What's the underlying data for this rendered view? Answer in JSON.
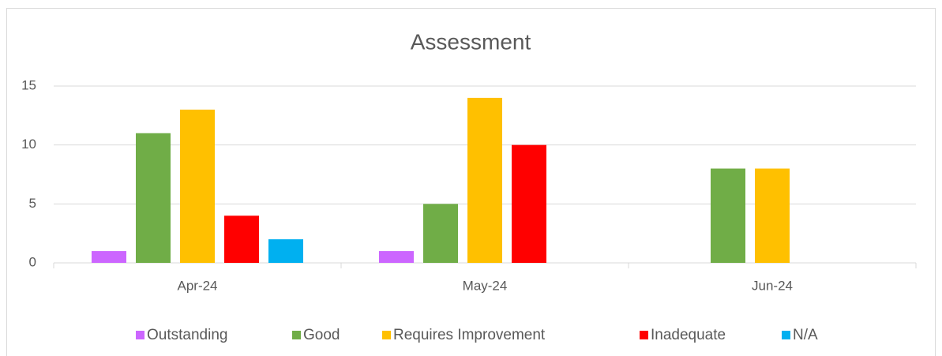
{
  "chart_data": {
    "type": "bar",
    "title": "Assessment",
    "categories": [
      "Apr-24",
      "May-24",
      "Jun-24"
    ],
    "series": [
      {
        "name": "Outstanding",
        "color": "#cc66ff",
        "values": [
          1,
          1,
          0
        ]
      },
      {
        "name": "Good",
        "color": "#70ad47",
        "values": [
          11,
          5,
          8
        ]
      },
      {
        "name": "Requires Improvement",
        "color": "#ffc000",
        "values": [
          13,
          14,
          8
        ]
      },
      {
        "name": "Inadequate",
        "color": "#ff0000",
        "values": [
          4,
          10,
          0
        ]
      },
      {
        "name": "N/A",
        "color": "#00b0f0",
        "values": [
          2,
          0,
          0
        ]
      }
    ],
    "ylim": [
      0,
      15
    ],
    "yticks": [
      0,
      5,
      10,
      15
    ],
    "grid": true,
    "legend": "bottom"
  }
}
